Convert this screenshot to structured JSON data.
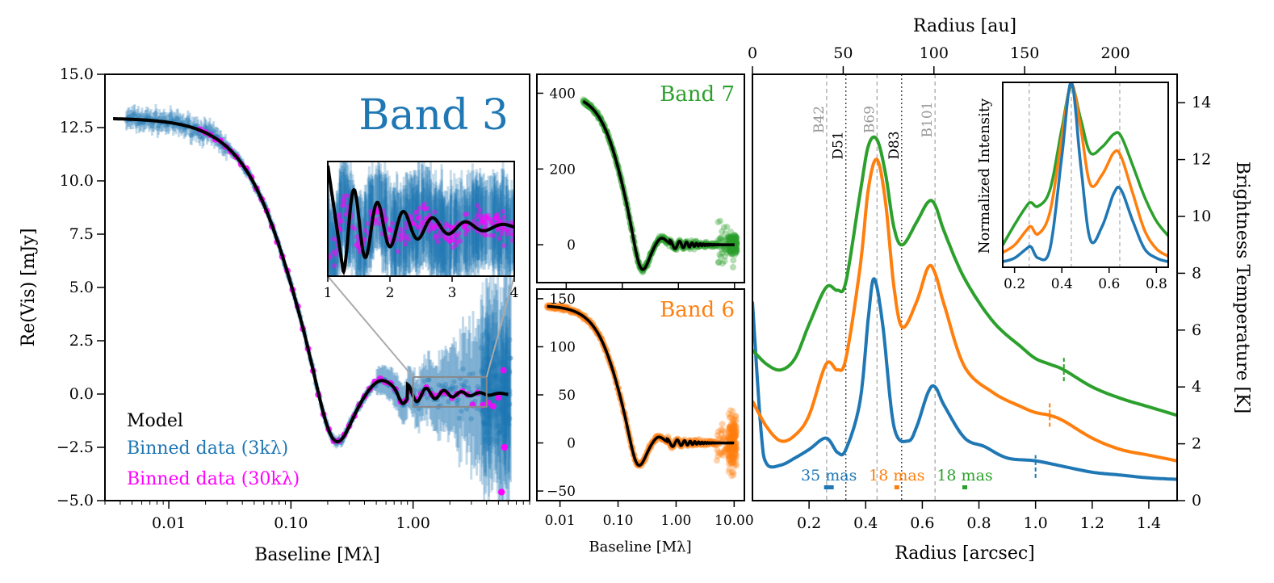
{
  "colors": {
    "band3": "#1f77b4",
    "band6": "#ff7f0e",
    "band7": "#2ca02c",
    "magenta": "#ff00ff",
    "model": "#000000"
  },
  "chart_data": [
    {
      "id": "band3_visibilities",
      "type": "scatter",
      "title": "Band 3",
      "xlabel": "Baseline [Mλ]",
      "ylabel": "Re(Vis) [mJy]",
      "xscale": "log",
      "xlim": [
        0.003,
        9
      ],
      "ylim": [
        -5,
        15
      ],
      "xticks": [
        "0.01",
        "0.10",
        "1.00"
      ],
      "yticks": [
        "−5.0",
        "−2.5",
        "0.0",
        "2.5",
        "5.0",
        "7.5",
        "10.0",
        "12.5",
        "15.0"
      ],
      "legend": {
        "position": "lower-left",
        "entries": [
          "Model",
          "Binned data (3kλ)",
          "Binned data (30kλ)"
        ]
      },
      "series": [
        {
          "name": "Model",
          "x": [
            0.004,
            0.02,
            0.05,
            0.1,
            0.22,
            0.5,
            0.8,
            1.0,
            2.0,
            6.0
          ],
          "y": [
            12.95,
            12.3,
            8.8,
            3.3,
            -1.95,
            0.5,
            -0.3,
            0.3,
            0.05,
            0.0
          ]
        },
        {
          "name": "Binned data (3kλ)",
          "x": [
            0.005,
            0.007,
            0.01,
            0.02,
            0.04,
            0.1,
            0.22,
            0.6,
            1.0,
            3.0,
            5.0
          ],
          "y": [
            12.8,
            12.7,
            12.3,
            12.1,
            11.5,
            3.2,
            -2.0,
            0.5,
            0.1,
            0.2,
            0.0
          ]
        },
        {
          "name": "Binned data (30kλ)",
          "x": [
            0.02,
            0.06,
            0.1,
            0.22,
            0.6,
            1.0,
            3.0,
            5.0
          ],
          "y": [
            12.4,
            7.8,
            3.0,
            -1.9,
            0.5,
            0.1,
            0.2,
            -1.0
          ]
        }
      ],
      "inset": {
        "xlim": [
          1,
          4
        ],
        "xticks": [
          "1",
          "2",
          "3",
          "4"
        ],
        "ylim": [
          -0.6,
          0.8
        ],
        "model_x": [
          1.0,
          1.1,
          1.28,
          1.45,
          1.62,
          1.8,
          2.0,
          2.2,
          2.45,
          2.7,
          3.0,
          3.3,
          3.6,
          4.0
        ],
        "model_y": [
          0.75,
          -0.3,
          -0.5,
          0.25,
          0.1,
          -0.2,
          0.18,
          -0.05,
          0.15,
          0.0,
          0.07,
          0.0,
          0.0,
          0.0
        ]
      }
    },
    {
      "id": "band7_visibilities",
      "type": "scatter",
      "title": "Band 7",
      "xscale": "log",
      "xlim": [
        0.003,
        15
      ],
      "ylim": [
        -100,
        450
      ],
      "yticks": [
        "0",
        "200",
        "400"
      ],
      "series": [
        {
          "name": "Model",
          "x": [
            0.02,
            0.05,
            0.1,
            0.22,
            0.5,
            1.0,
            10.0
          ],
          "y": [
            400,
            300,
            80,
            -60,
            20,
            5,
            0
          ]
        }
      ]
    },
    {
      "id": "band6_visibilities",
      "type": "scatter",
      "title": "Band 6",
      "xlabel": "Baseline [Mλ]",
      "xscale": "log",
      "xlim": [
        0.004,
        15
      ],
      "ylim": [
        -60,
        160
      ],
      "xticks": [
        "0.01",
        "0.10",
        "1.00",
        "10.00"
      ],
      "yticks": [
        "−50",
        "0",
        "50",
        "100",
        "150"
      ],
      "series": [
        {
          "name": "Model",
          "x": [
            0.006,
            0.02,
            0.05,
            0.1,
            0.22,
            0.5,
            1.0,
            10.0
          ],
          "y": [
            143,
            138,
            100,
            30,
            -25,
            5,
            2,
            0
          ]
        }
      ]
    },
    {
      "id": "radial_profiles",
      "type": "line",
      "xlabel": "Radius [arcsec]",
      "xlabel_top": "Radius [au]",
      "ylabel": "Brightness Temperature [K]",
      "xlim": [
        0,
        1.5
      ],
      "ylim": [
        0,
        15
      ],
      "xticks": [
        "0.2",
        "0.4",
        "0.6",
        "0.8",
        "1.0",
        "1.2",
        "1.4"
      ],
      "xticks_top": [
        "0",
        "50",
        "100",
        "150",
        "200"
      ],
      "yticks": [
        "0",
        "2",
        "4",
        "6",
        "8",
        "10",
        "12",
        "14"
      ],
      "features": [
        {
          "label": "B42",
          "r": 0.262,
          "kind": "bright"
        },
        {
          "label": "D51",
          "r": 0.33,
          "kind": "dark"
        },
        {
          "label": "B69",
          "r": 0.44,
          "kind": "bright"
        },
        {
          "label": "D83",
          "r": 0.527,
          "kind": "dark"
        },
        {
          "label": "B101",
          "r": 0.645,
          "kind": "bright"
        }
      ],
      "resolution": [
        {
          "label": "35 mas",
          "r": 0.27,
          "band": "band3"
        },
        {
          "label": "18 mas",
          "r": 0.51,
          "band": "band6"
        },
        {
          "label": "18 mas",
          "r": 0.75,
          "band": "band7"
        }
      ],
      "series": [
        {
          "band": "band3",
          "x": [
            0.0,
            0.03,
            0.05,
            0.1,
            0.15,
            0.2,
            0.26,
            0.3,
            0.33,
            0.38,
            0.41,
            0.43,
            0.46,
            0.5,
            0.55,
            0.58,
            0.62,
            0.645,
            0.68,
            0.75,
            0.82,
            0.9,
            1.0,
            1.1,
            1.2,
            1.3,
            1.4,
            1.5
          ],
          "y": [
            7.0,
            2.5,
            1.3,
            1.25,
            1.5,
            1.8,
            2.2,
            1.7,
            1.8,
            3.5,
            6.5,
            7.8,
            6.2,
            2.6,
            2.1,
            2.6,
            3.8,
            4.0,
            3.3,
            2.2,
            1.9,
            1.5,
            1.4,
            1.2,
            1.0,
            0.9,
            0.8,
            0.75
          ]
        },
        {
          "band": "band6",
          "x": [
            0.0,
            0.05,
            0.1,
            0.15,
            0.2,
            0.26,
            0.3,
            0.33,
            0.38,
            0.41,
            0.44,
            0.47,
            0.5,
            0.53,
            0.58,
            0.62,
            0.645,
            0.68,
            0.75,
            0.85,
            0.95,
            1.0,
            1.05,
            1.1,
            1.2,
            1.3,
            1.4,
            1.5
          ],
          "y": [
            3.5,
            2.6,
            2.1,
            2.3,
            3.0,
            4.8,
            4.6,
            5.0,
            8.2,
            11.0,
            12.0,
            10.5,
            7.5,
            6.1,
            7.0,
            8.2,
            8.0,
            6.8,
            4.7,
            3.8,
            3.3,
            3.1,
            3.0,
            2.8,
            2.2,
            1.8,
            1.6,
            1.4
          ]
        },
        {
          "band": "band7",
          "x": [
            0.0,
            0.05,
            0.1,
            0.15,
            0.2,
            0.26,
            0.3,
            0.33,
            0.38,
            0.41,
            0.44,
            0.47,
            0.5,
            0.53,
            0.58,
            0.62,
            0.645,
            0.68,
            0.75,
            0.85,
            0.95,
            1.0,
            1.05,
            1.1,
            1.2,
            1.3,
            1.4,
            1.5
          ],
          "y": [
            5.3,
            4.8,
            4.6,
            5.0,
            6.2,
            7.5,
            7.4,
            7.7,
            10.8,
            12.5,
            12.7,
            11.5,
            9.6,
            9.0,
            9.8,
            10.5,
            10.4,
            9.4,
            7.8,
            6.3,
            5.4,
            5.0,
            4.8,
            4.6,
            4.0,
            3.6,
            3.3,
            3.0
          ]
        }
      ],
      "inset": {
        "ylabel": "Normalized Intensity",
        "xlim": [
          0.15,
          0.85
        ],
        "xticks": [
          "0.2",
          "0.4",
          "0.6",
          "0.8"
        ]
      }
    }
  ]
}
